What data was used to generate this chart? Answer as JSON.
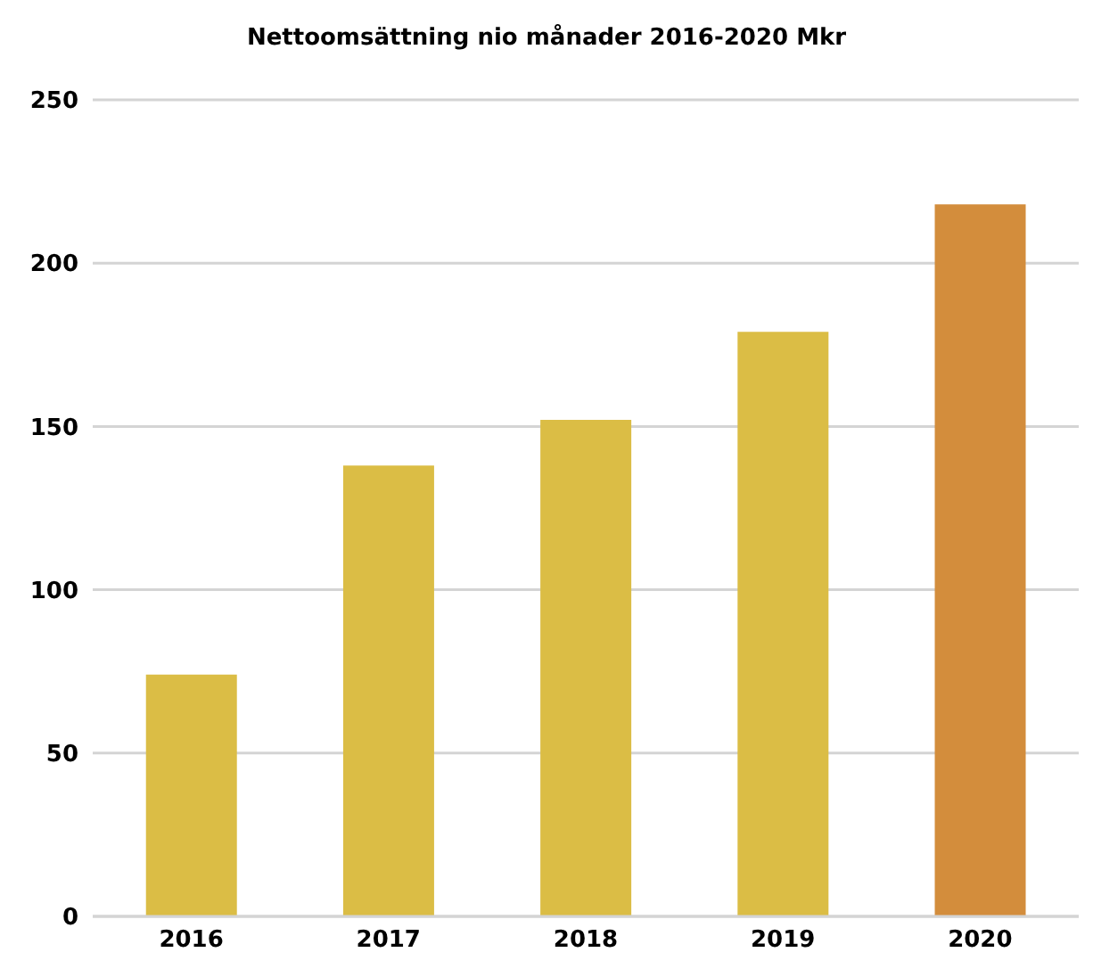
{
  "chart_data": {
    "type": "bar",
    "title": "Nettoomsättning nio månader 2016-2020 Mkr",
    "categories": [
      "2016",
      "2017",
      "2018",
      "2019",
      "2020"
    ],
    "values": [
      74,
      138,
      152,
      179,
      218
    ],
    "colors": [
      "#dbbd45",
      "#dbbd45",
      "#dbbd45",
      "#dbbd45",
      "#d38d3c"
    ],
    "ylim": [
      0,
      250
    ],
    "yticks": [
      0,
      50,
      100,
      150,
      200,
      250
    ],
    "grid": "y"
  }
}
